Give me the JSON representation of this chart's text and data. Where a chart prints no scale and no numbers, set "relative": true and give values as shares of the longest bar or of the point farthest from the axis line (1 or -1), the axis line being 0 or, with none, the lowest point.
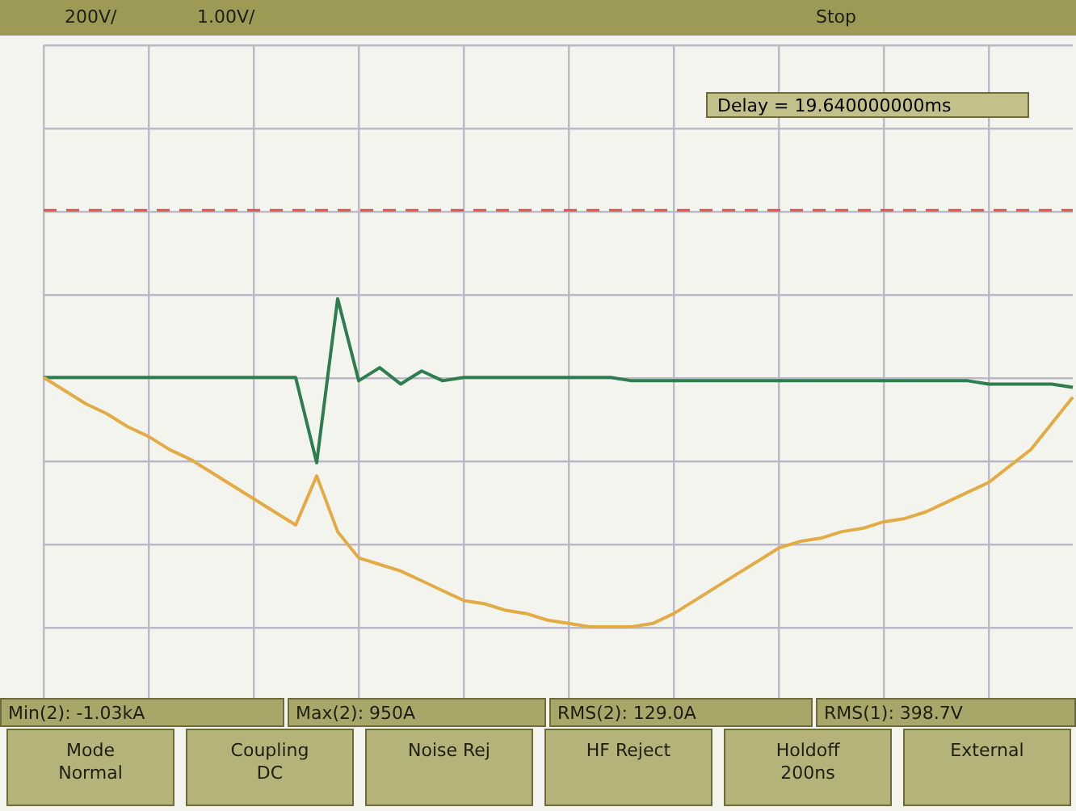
{
  "chart_data": {
    "type": "line",
    "relative": true,
    "grid": true,
    "categories": [
      null,
      null,
      null,
      null,
      null,
      null,
      null,
      null,
      null,
      null,
      null,
      null,
      null,
      null,
      null,
      null,
      null,
      null,
      null,
      null,
      null,
      null,
      null,
      null,
      null,
      null,
      null,
      null,
      null,
      null,
      null,
      null,
      null,
      null,
      null,
      null,
      null,
      null,
      null,
      null,
      null,
      null,
      null,
      null,
      null,
      null,
      null,
      null,
      null,
      null
    ],
    "series": [
      {
        "color": "#e3ab45",
        "values": [
          0.76,
          0.72,
          0.68,
          0.65,
          0.61,
          0.58,
          0.54,
          0.51,
          0.47,
          0.43,
          0.39,
          0.35,
          0.31,
          0.46,
          0.29,
          0.21,
          0.19,
          0.17,
          0.14,
          0.11,
          0.08,
          0.07,
          0.05,
          0.04,
          0.02,
          0.01,
          0,
          0,
          0,
          0.01,
          0.04,
          0.08,
          0.12,
          0.16,
          0.2,
          0.24,
          0.26,
          0.27,
          0.29,
          0.3,
          0.32,
          0.33,
          0.35,
          0.38,
          0.41,
          0.44,
          0.49,
          0.54,
          0.62,
          0.7
        ]
      },
      {
        "color": "#2e7d4f",
        "values": [
          0.76,
          0.76,
          0.76,
          0.76,
          0.76,
          0.76,
          0.76,
          0.76,
          0.76,
          0.76,
          0.76,
          0.76,
          0.76,
          0.5,
          1,
          0.75,
          0.79,
          0.74,
          0.78,
          0.75,
          0.76,
          0.76,
          0.76,
          0.76,
          0.76,
          0.76,
          0.76,
          0.76,
          0.75,
          0.75,
          0.75,
          0.75,
          0.75,
          0.75,
          0.75,
          0.75,
          0.75,
          0.75,
          0.75,
          0.75,
          0.75,
          0.75,
          0.75,
          0.75,
          0.75,
          0.74,
          0.74,
          0.74,
          0.74,
          0.73
        ]
      }
    ],
    "ref_lines": [
      {
        "axis": "y",
        "value": 1.27,
        "color": "#d9534f",
        "line_style": "dashed"
      }
    ],
    "annotations": [
      "200V/",
      "1.00V/",
      "Stop",
      "Delay = 19.640000000ms",
      "Min(2): -1.03kA",
      "Max(2): 950A",
      "RMS(2): 129.0A",
      "RMS(1): 398.7V",
      "Mode Normal",
      "Coupling DC",
      "Noise Rej",
      "HF Reject",
      "Holdoff 200ns",
      "External"
    ]
  }
}
